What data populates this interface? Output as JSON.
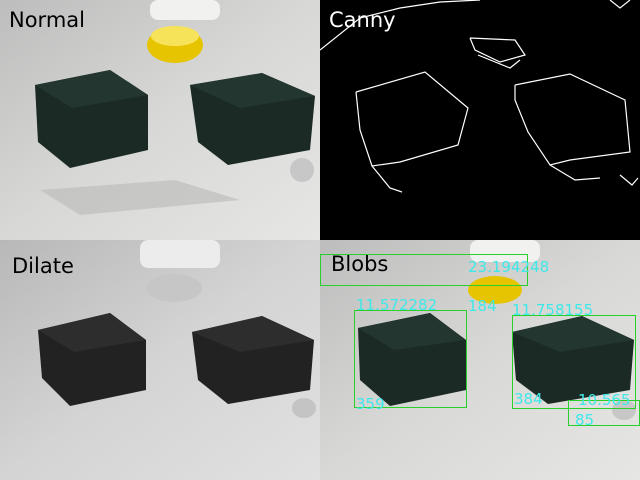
{
  "panels": {
    "normal": {
      "title": "Normal"
    },
    "canny": {
      "title": "Canny"
    },
    "dilate": {
      "title": "Dilate"
    },
    "blobs": {
      "title": "Blobs"
    }
  },
  "blobs": [
    {
      "id": "blob-1",
      "label": "11.572282",
      "area": "359",
      "extra": "184"
    },
    {
      "id": "blob-2",
      "label": "11.758155",
      "area": "384"
    },
    {
      "id": "blob-3",
      "label": "23.194248"
    },
    {
      "id": "blob-4",
      "label": "10.565",
      "area": "85"
    }
  ],
  "colors": {
    "bbox": "#2ad02a",
    "label": "#3fe8e8"
  }
}
